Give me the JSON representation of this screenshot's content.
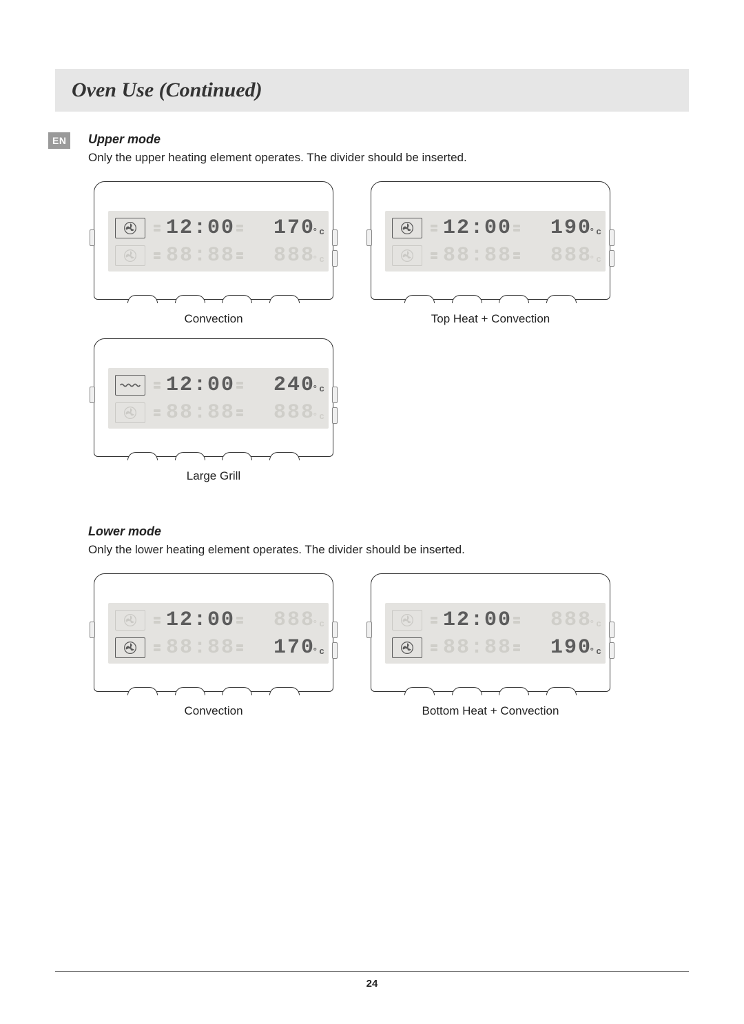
{
  "header": {
    "title": "Oven Use (Continued)"
  },
  "lang_badge": "EN",
  "page_number": "24",
  "upper_mode": {
    "heading": "Upper mode",
    "description": "Only the upper heating element operates. The divider should be inserted.",
    "panels": [
      {
        "caption": "Convection",
        "type": "upper",
        "active_row": "top",
        "top": {
          "icon": "fan",
          "icon_active": true,
          "time": "12:00",
          "time_on": true,
          "temp": "170",
          "temp_on": true,
          "unit": "°c"
        },
        "bottom": {
          "icon": "fan",
          "icon_active": false,
          "time": "88:88",
          "time_on": false,
          "temp": "888",
          "temp_on": false,
          "unit": "°c"
        }
      },
      {
        "caption": "Top Heat + Convection",
        "type": "upper",
        "active_row": "top",
        "top": {
          "icon": "fan",
          "icon_active": true,
          "time": "12:00",
          "time_on": true,
          "temp": "190",
          "temp_on": true,
          "unit": "°c"
        },
        "bottom": {
          "icon": "fan",
          "icon_active": false,
          "time": "88:88",
          "time_on": false,
          "temp": "888",
          "temp_on": false,
          "unit": "°c"
        }
      },
      {
        "caption": "Large Grill",
        "type": "upper",
        "active_row": "top",
        "top": {
          "icon": "grill",
          "icon_active": true,
          "time": "12:00",
          "time_on": true,
          "temp": "240",
          "temp_on": true,
          "unit": "°c"
        },
        "bottom": {
          "icon": "fan",
          "icon_active": false,
          "time": "88:88",
          "time_on": false,
          "temp": "888",
          "temp_on": false,
          "unit": "°c"
        }
      }
    ]
  },
  "lower_mode": {
    "heading": "Lower mode",
    "description": "Only the lower heating element operates. The divider should be inserted.",
    "panels": [
      {
        "caption": "Convection",
        "type": "lower",
        "active_row": "bottom",
        "top": {
          "icon": "fan",
          "icon_active": false,
          "time": "12:00",
          "time_on": true,
          "temp": "888",
          "temp_on": false,
          "unit": "°c"
        },
        "bottom": {
          "icon": "fan",
          "icon_active": true,
          "time": "88:88",
          "time_on": false,
          "temp": "170",
          "temp_on": true,
          "unit": "°c"
        }
      },
      {
        "caption": "Bottom Heat + Convection",
        "type": "lower",
        "active_row": "bottom",
        "top": {
          "icon": "fan",
          "icon_active": false,
          "time": "12:00",
          "time_on": true,
          "temp": "888",
          "temp_on": false,
          "unit": "°c"
        },
        "bottom": {
          "icon": "fan",
          "icon_active": true,
          "time": "88:88",
          "time_on": false,
          "temp": "190",
          "temp_on": true,
          "unit": "°c"
        }
      }
    ]
  },
  "colors": {
    "header_bg": "#e6e6e6",
    "lcd_bg": "#e4e3e0",
    "seg_on": "#5c5c5c",
    "seg_off": "#cfcec9",
    "badge_bg": "#9a9a9a",
    "border": "#333333"
  }
}
